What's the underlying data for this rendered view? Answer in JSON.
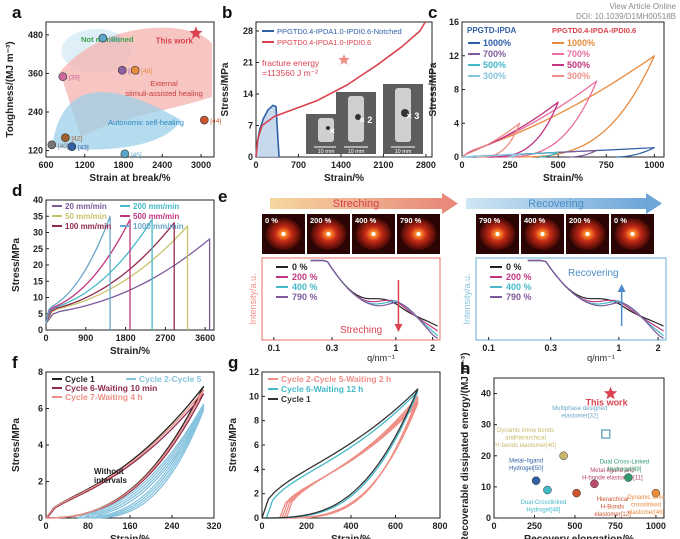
{
  "header": {
    "link": "View Article Online",
    "doi": "DOI: 10.1039/D1MH00518B"
  },
  "colors": {
    "red": "#d9434f",
    "salmon": "#ee8f86",
    "blue": "#2f5fa7",
    "lightblue": "#86c3de",
    "purple": "#7e5a9b",
    "cyan": "#44b9c8",
    "pink": "#ea6ea1",
    "magenta": "#c0357d",
    "olive": "#c9c26b",
    "maroon": "#8e2a4f",
    "orange": "#e88b3d",
    "green": "#2f9a6b",
    "black": "#222222"
  },
  "chart_data": [
    {
      "panel": "a",
      "type": "scatter",
      "xlabel": "Strain at break/%",
      "ylabel": "Toughness/(MJ m⁻³)",
      "xlim": [
        600,
        3200
      ],
      "ylim": [
        100,
        520
      ],
      "xticks": [
        "600",
        "1200",
        "1800",
        "2400",
        "3000"
      ],
      "yticks": [
        "120",
        "240",
        "360",
        "480"
      ],
      "regions": [
        "Not mentioned",
        "External stimuli-assisted healing",
        "Autonomic self-healing"
      ],
      "points": [
        {
          "label": "This work",
          "x": 2920,
          "y": 485
        },
        {
          "label": "[38]",
          "x": 1480,
          "y": 470
        },
        {
          "label": "[39]",
          "x": 860,
          "y": 350
        },
        {
          "label": "[12]",
          "x": 1780,
          "y": 370
        },
        {
          "label": "[48]",
          "x": 1980,
          "y": 370
        },
        {
          "label": "[44]",
          "x": 3050,
          "y": 215
        },
        {
          "label": "[40]",
          "x": 690,
          "y": 138
        },
        {
          "label": "[42]",
          "x": 900,
          "y": 160
        },
        {
          "label": "[43]",
          "x": 1000,
          "y": 132
        },
        {
          "label": "[45]",
          "x": 1820,
          "y": 110
        }
      ]
    },
    {
      "panel": "b",
      "type": "line",
      "xlabel": "Strain/%",
      "ylabel": "Stress/MPa",
      "xlim": [
        0,
        2900
      ],
      "ylim": [
        0,
        30
      ],
      "xticks": [
        "0",
        "700",
        "1400",
        "2100",
        "2800"
      ],
      "yticks": [
        "0",
        "7",
        "14",
        "21",
        "28"
      ],
      "series": [
        {
          "name": "PPGTD0.4-IPDA1.0-IPDI0.6-Notched"
        },
        {
          "name": "PPGTD0.4-IPDA1.0-IPDI0.6"
        }
      ],
      "annotation": "fracture energy =113560 J m⁻²",
      "insets": [
        "× 1",
        "× 2",
        "× 3"
      ],
      "scalebar": "10 mm"
    },
    {
      "panel": "c",
      "type": "line",
      "xlabel": "Strain/%",
      "ylabel": "Stress/MPa",
      "xlim": [
        0,
        1050
      ],
      "ylim": [
        0,
        16
      ],
      "xticks": [
        "0",
        "250",
        "500",
        "750",
        "1000"
      ],
      "yticks": [
        "0",
        "4",
        "8",
        "12",
        "16"
      ],
      "legend_left_title": "PPGTD-IPDA",
      "legend_right_title": "PPGTD0.4-IPDA-IPDI0.6",
      "cycles": [
        "1000%",
        "700%",
        "500%",
        "300%"
      ]
    },
    {
      "panel": "d",
      "type": "line",
      "xlabel": "Strain/%",
      "ylabel": "Stress/MPa",
      "xlim": [
        0,
        3800
      ],
      "ylim": [
        0,
        40
      ],
      "xticks": [
        "0",
        "900",
        "1800",
        "2700",
        "3600"
      ],
      "yticks": [
        "0",
        "5",
        "10",
        "15",
        "20",
        "25",
        "30",
        "35",
        "40"
      ],
      "series": [
        {
          "name": "20 mm/min",
          "break_strain": 3700,
          "break_stress": 28
        },
        {
          "name": "50 mm/min",
          "break_strain": 3200,
          "break_stress": 32
        },
        {
          "name": "100 mm/min",
          "break_strain": 2900,
          "break_stress": 33
        },
        {
          "name": "200 mm/min",
          "break_strain": 2400,
          "break_stress": 34
        },
        {
          "name": "500 mm/min",
          "break_strain": 1900,
          "break_stress": 34
        },
        {
          "name": "1000 mm/min",
          "break_strain": 1450,
          "break_stress": 35
        }
      ]
    },
    {
      "panel": "e",
      "type": "line",
      "stretch_title": "Streching",
      "recover_title": "Recovering",
      "saxs_stretch": [
        "0 %",
        "200 %",
        "400 %",
        "790 %"
      ],
      "saxs_recover": [
        "790 %",
        "400 %",
        "200 %",
        "0 %"
      ],
      "xlabel": "q/nm⁻¹",
      "ylabel": "Intensity/a.u.",
      "xticks": [
        "0.1",
        "0.3",
        "1",
        "2"
      ],
      "series": [
        "0 %",
        "200 %",
        "400 %",
        "790 %"
      ],
      "arrow_stretch": "Streching",
      "arrow_recover": "Recovering"
    },
    {
      "panel": "f",
      "type": "line",
      "xlabel": "Strain/%",
      "ylabel": "Stress/MPa",
      "xlim": [
        0,
        320
      ],
      "ylim": [
        0,
        8
      ],
      "xticks": [
        "0",
        "80",
        "160",
        "240",
        "320"
      ],
      "yticks": [
        "0",
        "2",
        "4",
        "6",
        "8"
      ],
      "series": [
        "Cycle 1",
        "Cycle 2-Cycle 5",
        "Cycle 6-Waiting 10 min",
        "Cycle 7-Waiting 4 h"
      ],
      "annotation": "Without intervals"
    },
    {
      "panel": "g",
      "type": "line",
      "xlabel": "Strain/%",
      "ylabel": "Stress/MPa",
      "xlim": [
        0,
        800
      ],
      "ylim": [
        0,
        12
      ],
      "xticks": [
        "0",
        "200",
        "400",
        "600",
        "800"
      ],
      "yticks": [
        "0",
        "2",
        "4",
        "6",
        "8",
        "10",
        "12"
      ],
      "series": [
        "Cycle 2-Cycle 5-Waiting 2 h",
        "Cycle 6-Waiting 12 h",
        "Cycle 1"
      ]
    },
    {
      "panel": "h",
      "type": "scatter",
      "xlabel": "Recovery elongation/%",
      "ylabel": "Recoverable dissipated energy/(MJ m⁻³)",
      "xlim": [
        0,
        1050
      ],
      "ylim": [
        0,
        45
      ],
      "xticks": [
        "0",
        "250",
        "500",
        "750",
        "1000"
      ],
      "yticks": [
        "0",
        "10",
        "20",
        "30",
        "40"
      ],
      "points": [
        {
          "label": "This work",
          "x": 720,
          "y": 40
        },
        {
          "label": "Multiphase designed elastomer[32]",
          "x": 690,
          "y": 27
        },
        {
          "label": "Dynamic imine bonds andhierarchical H-bonds elastomer[40]",
          "x": 430,
          "y": 20
        },
        {
          "label": "Metal–ligand Hydrogel[50]",
          "x": 260,
          "y": 12
        },
        {
          "label": "Metal-ligand and H-bonde elastomer[11]",
          "x": 620,
          "y": 11
        },
        {
          "label": "Dual Cross-Linked Hydrogel[49]",
          "x": 830,
          "y": 13
        },
        {
          "label": "Dual-Crosslinked Hydrogel[48]",
          "x": 330,
          "y": 9
        },
        {
          "label": "Hierarchical H-Bonds elastomer[12]",
          "x": 510,
          "y": 8
        },
        {
          "label": "Dynamic ionic crosslinked elastomer[46]",
          "x": 1000,
          "y": 8
        }
      ]
    }
  ]
}
